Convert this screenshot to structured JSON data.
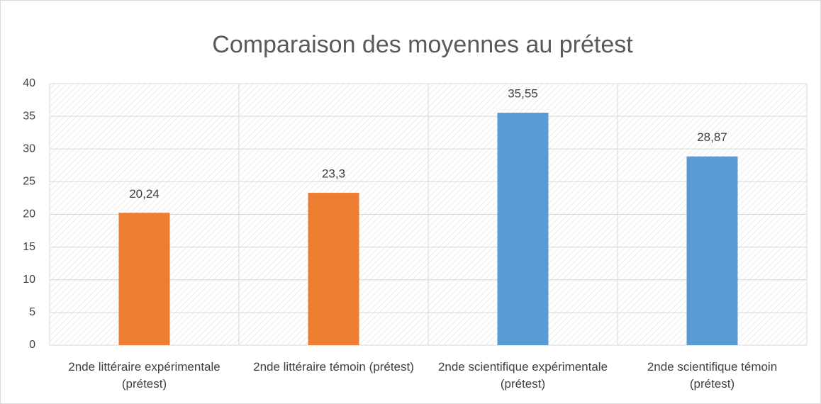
{
  "chart_data": {
    "type": "bar",
    "title": "Comparaison des moyennes au prétest",
    "categories": [
      "2nde littéraire expérimentale (prétest)",
      "2nde littéraire témoin (prétest)",
      "2nde scientifique expérimentale (prétest)",
      "2nde scientifique témoin (prétest)"
    ],
    "values": [
      20.24,
      23.3,
      35.55,
      28.87
    ],
    "value_labels": [
      "20,24",
      "23,3",
      "35,55",
      "28,87"
    ],
    "colors": [
      "#ed7d31",
      "#ed7d31",
      "#5b9bd5",
      "#5b9bd5"
    ],
    "ylim": [
      0,
      40
    ],
    "yticks": [
      0,
      5,
      10,
      15,
      20,
      25,
      30,
      35,
      40
    ],
    "grid": true
  }
}
